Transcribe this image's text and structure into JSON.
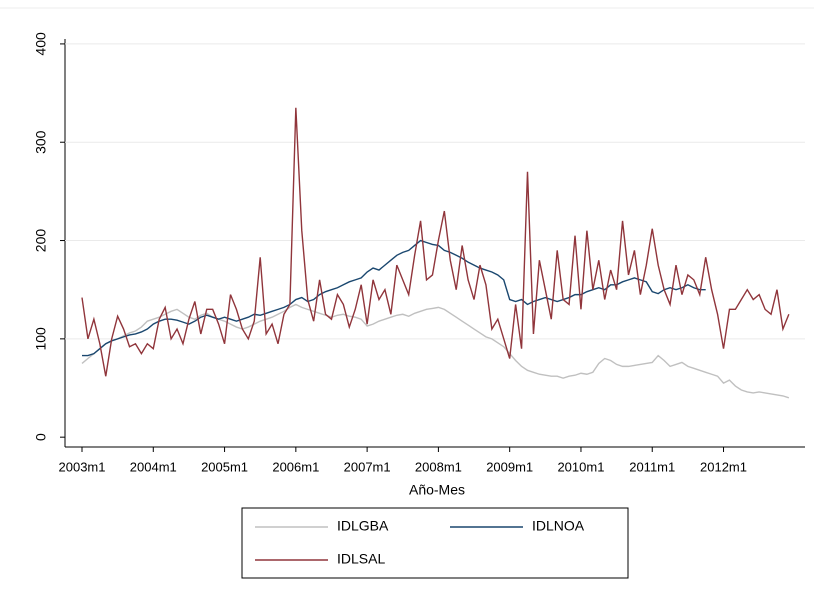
{
  "chart_data": {
    "type": "line",
    "x_label": "Año-Mes",
    "categories": [
      "2003m1",
      null,
      null,
      null,
      null,
      null,
      null,
      null,
      null,
      null,
      null,
      null,
      "2004m1",
      null,
      null,
      null,
      null,
      null,
      null,
      null,
      null,
      null,
      null,
      null,
      "2005m1",
      null,
      null,
      null,
      null,
      null,
      null,
      null,
      null,
      null,
      null,
      null,
      "2006m1",
      null,
      null,
      null,
      null,
      null,
      null,
      null,
      null,
      null,
      null,
      null,
      "2007m1",
      null,
      null,
      null,
      null,
      null,
      null,
      null,
      null,
      null,
      null,
      null,
      "2008m1",
      null,
      null,
      null,
      null,
      null,
      null,
      null,
      null,
      null,
      null,
      null,
      "2009m1",
      null,
      null,
      null,
      null,
      null,
      null,
      null,
      null,
      null,
      null,
      null,
      "2010m1",
      null,
      null,
      null,
      null,
      null,
      null,
      null,
      null,
      null,
      null,
      null,
      "2011m1",
      null,
      null,
      null,
      null,
      null,
      null,
      null,
      null,
      null,
      null,
      null,
      "2012m1",
      null,
      null,
      null,
      null,
      null,
      null,
      null,
      null,
      null,
      null,
      null
    ],
    "series": [
      {
        "name": "IDLGBA",
        "color": "#c0c0c0",
        "values": [
          75,
          80,
          85,
          90,
          95,
          98,
          100,
          103,
          106,
          108,
          112,
          118,
          120,
          122,
          125,
          128,
          130,
          126,
          122,
          120,
          124,
          126,
          122,
          120,
          118,
          115,
          112,
          110,
          112,
          115,
          118,
          120,
          122,
          125,
          128,
          132,
          135,
          132,
          130,
          128,
          126,
          124,
          122,
          124,
          125,
          123,
          122,
          120,
          113,
          115,
          118,
          120,
          122,
          124,
          125,
          123,
          126,
          128,
          130,
          131,
          132,
          130,
          126,
          122,
          118,
          114,
          110,
          106,
          102,
          100,
          96,
          92,
          85,
          78,
          72,
          68,
          66,
          64,
          63,
          62,
          62,
          60,
          62,
          63,
          65,
          64,
          66,
          75,
          80,
          78,
          74,
          72,
          72,
          73,
          74,
          75,
          76,
          83,
          78,
          72,
          74,
          76,
          72,
          70,
          68,
          66,
          64,
          62,
          55,
          58,
          52,
          48,
          46,
          45,
          46,
          45,
          44,
          43,
          42,
          40
        ]
      },
      {
        "name": "IDLNOA",
        "color": "#1a476f",
        "values": [
          83,
          83,
          85,
          90,
          95,
          98,
          100,
          102,
          104,
          105,
          107,
          110,
          115,
          118,
          120,
          120,
          119,
          117,
          115,
          118,
          122,
          124,
          122,
          120,
          122,
          120,
          118,
          120,
          122,
          125,
          124,
          126,
          128,
          130,
          132,
          135,
          140,
          142,
          138,
          140,
          145,
          148,
          150,
          152,
          155,
          158,
          160,
          162,
          168,
          172,
          170,
          175,
          180,
          185,
          188,
          190,
          195,
          200,
          198,
          196,
          195,
          190,
          188,
          185,
          182,
          178,
          175,
          172,
          170,
          168,
          165,
          160,
          140,
          138,
          140,
          135,
          138,
          140,
          142,
          140,
          138,
          140,
          142,
          145,
          145,
          148,
          150,
          152,
          150,
          155,
          155,
          158,
          160,
          162,
          160,
          158,
          148,
          146,
          150,
          152,
          150,
          152,
          155,
          152,
          150,
          150,
          null,
          null,
          null,
          null,
          null,
          null,
          null,
          null,
          null,
          null,
          null,
          null,
          null,
          null
        ]
      },
      {
        "name": "IDLSAL",
        "color": "#90353b",
        "values": [
          142,
          100,
          120,
          95,
          62,
          100,
          123,
          110,
          92,
          95,
          85,
          95,
          90,
          120,
          132,
          100,
          110,
          95,
          120,
          138,
          105,
          130,
          130,
          115,
          95,
          145,
          130,
          110,
          100,
          118,
          183,
          105,
          115,
          95,
          125,
          135,
          335,
          210,
          140,
          118,
          160,
          125,
          120,
          145,
          135,
          112,
          130,
          155,
          115,
          160,
          140,
          150,
          125,
          175,
          160,
          145,
          185,
          220,
          160,
          165,
          200,
          230,
          180,
          150,
          195,
          160,
          140,
          175,
          155,
          110,
          120,
          100,
          80,
          135,
          90,
          270,
          105,
          180,
          150,
          120,
          190,
          140,
          135,
          205,
          130,
          210,
          150,
          180,
          140,
          170,
          150,
          220,
          165,
          190,
          145,
          175,
          212,
          175,
          150,
          135,
          175,
          145,
          165,
          160,
          145,
          183,
          150,
          125,
          90,
          130,
          130,
          140,
          150,
          140,
          145,
          130,
          125,
          150,
          110,
          125
        ]
      }
    ],
    "ylim": [
      -10,
      405
    ],
    "yticks": [
      0,
      100,
      200,
      300,
      400
    ],
    "grid": true,
    "legend": "bottom"
  }
}
